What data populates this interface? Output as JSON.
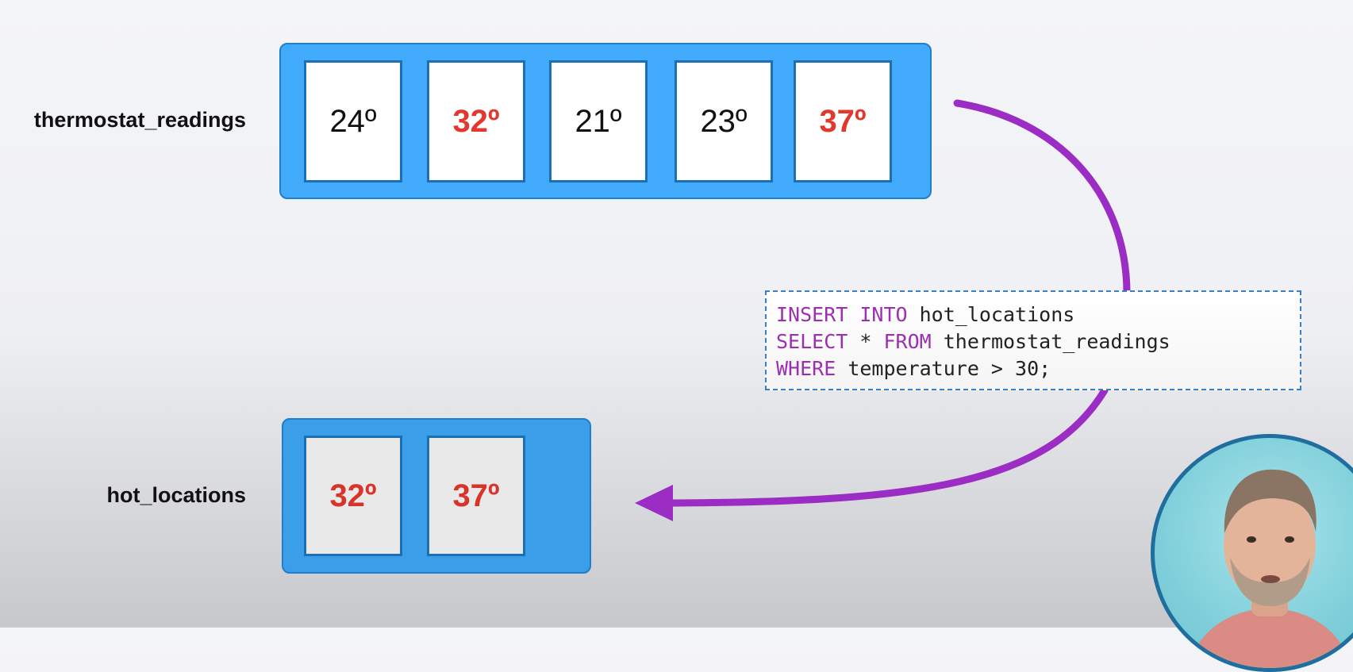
{
  "source_table": {
    "name": "thermostat_readings",
    "cells": [
      {
        "value": "24º",
        "hot": false
      },
      {
        "value": "32º",
        "hot": true
      },
      {
        "value": "21º",
        "hot": false
      },
      {
        "value": "23º",
        "hot": false
      },
      {
        "value": "37º",
        "hot": true
      }
    ]
  },
  "target_table": {
    "name": "hot_locations",
    "cells": [
      {
        "value": "32º"
      },
      {
        "value": "37º"
      }
    ]
  },
  "sql": {
    "line1_kw": "INSERT INTO",
    "line1_rest": " hot_locations",
    "line2_kw1": "SELECT",
    "line2_mid": " * ",
    "line2_kw2": "FROM",
    "line2_rest": " thermostat_readings",
    "line3_kw": "WHERE",
    "line3_rest": " temperature > 30;"
  },
  "colors": {
    "container_blue": "#42aafb",
    "hot_red": "#e03a2f",
    "keyword_purple": "#9b2fb0",
    "arrow_purple": "#9b2cc4"
  },
  "icons": {
    "arrow": "curved-arrow-icon",
    "presenter": "presenter-avatar"
  }
}
